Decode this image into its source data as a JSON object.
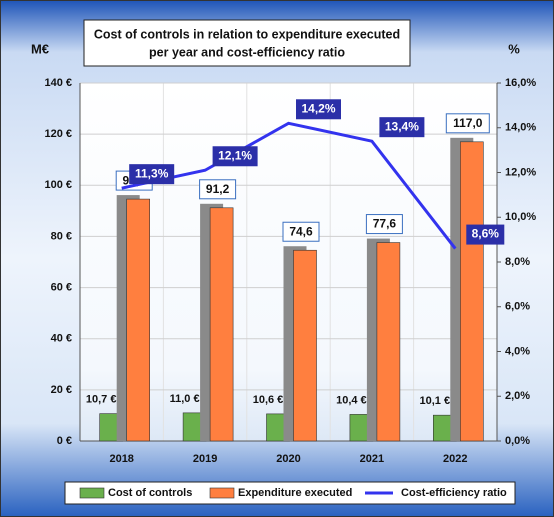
{
  "chart_data": {
    "type": "bar-line",
    "title": [
      "Cost of controls in relation to expenditure executed",
      "per year and cost-efficiency ratio"
    ],
    "ylabel": "M€",
    "y2label": "%",
    "categories": [
      "2018",
      "2019",
      "2020",
      "2021",
      "2022"
    ],
    "series": [
      {
        "name": "Cost of controls",
        "color": "#6ab04c",
        "type": "bar",
        "values": [
          10.7,
          11.0,
          10.6,
          10.4,
          10.1
        ],
        "value_labels": [
          "10,7 €",
          "11,0 €",
          "10,6 €",
          "10,4 €",
          "10,1 €"
        ]
      },
      {
        "name": "Expenditure executed",
        "color": "#ff7f3f",
        "type": "bar",
        "values": [
          94.6,
          91.2,
          74.6,
          77.6,
          117.0
        ],
        "value_labels": [
          "94,6",
          "91,2",
          "74,6",
          "77,6",
          "117,0"
        ]
      },
      {
        "name": "Cost-efficiency ratio",
        "color": "#3333ee",
        "type": "line",
        "axis": "y2",
        "values": [
          11.3,
          12.1,
          14.2,
          13.4,
          8.6
        ],
        "value_labels": [
          "11,3%",
          "12,1%",
          "14,2%",
          "13,4%",
          "8,6%"
        ]
      }
    ],
    "ylim": [
      0,
      140
    ],
    "yticks": [
      {
        "value": 0,
        "label": "0 €"
      },
      {
        "value": 20,
        "label": "20 €"
      },
      {
        "value": 40,
        "label": "40 €"
      },
      {
        "value": 60,
        "label": "60 €"
      },
      {
        "value": 80,
        "label": "80 €"
      },
      {
        "value": 100,
        "label": "100 €"
      },
      {
        "value": 120,
        "label": "120 €"
      },
      {
        "value": 140,
        "label": "140 €"
      }
    ],
    "y2lim": [
      0,
      16
    ],
    "y2ticks": [
      {
        "value": 0,
        "label": "0,0%"
      },
      {
        "value": 2,
        "label": "2,0%"
      },
      {
        "value": 4,
        "label": "4,0%"
      },
      {
        "value": 6,
        "label": "6,0%"
      },
      {
        "value": 8,
        "label": "8,0%"
      },
      {
        "value": 10,
        "label": "10,0%"
      },
      {
        "value": 12,
        "label": "12,0%"
      },
      {
        "value": 14,
        "label": "14,0%"
      },
      {
        "value": 16,
        "label": "16,0%"
      }
    ],
    "grid": true,
    "legend": "bottom"
  }
}
